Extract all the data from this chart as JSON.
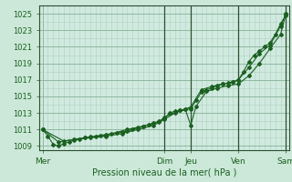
{
  "xlabel": "Pression niveau de la mer( hPa )",
  "bg_color": "#cce8d8",
  "plot_bg_color": "#d0eae0",
  "grid_major_color": "#90b8a0",
  "grid_minor_color": "#b0d0c0",
  "line_color": "#1a6020",
  "vline_color": "#2a5030",
  "ylim": [
    1008.5,
    1026.0
  ],
  "xlim": [
    -0.3,
    23.3
  ],
  "yticks": [
    1009,
    1011,
    1013,
    1015,
    1017,
    1019,
    1021,
    1023,
    1025
  ],
  "day_labels": [
    "Mer",
    "Dim",
    "Jeu",
    "Ven",
    "Sam"
  ],
  "day_positions": [
    0.0,
    11.5,
    14.0,
    18.5,
    23.0
  ],
  "vline_positions": [
    11.5,
    14.0,
    18.5,
    23.0
  ],
  "line1_x": [
    0.0,
    0.5,
    1.0,
    1.5,
    2.0,
    2.5,
    3.0,
    3.5,
    4.0,
    4.5,
    5.0,
    5.5,
    6.0,
    6.5,
    7.0,
    7.5,
    8.0,
    8.5,
    9.0,
    9.5,
    10.0,
    10.5,
    11.0,
    11.5,
    12.0,
    12.5,
    13.0,
    13.5,
    14.0,
    14.5,
    15.0,
    15.5,
    16.0,
    16.5,
    17.0,
    17.5,
    18.0,
    18.5,
    19.0,
    19.5,
    20.0,
    20.5,
    21.0,
    21.5,
    22.0,
    22.5,
    23.0
  ],
  "line1_y": [
    1011.0,
    1010.2,
    1009.2,
    1009.0,
    1009.3,
    1009.5,
    1009.7,
    1009.8,
    1010.0,
    1010.1,
    1010.2,
    1010.3,
    1010.4,
    1010.5,
    1010.6,
    1010.7,
    1010.8,
    1011.0,
    1011.2,
    1011.4,
    1011.6,
    1011.8,
    1012.0,
    1012.3,
    1013.0,
    1013.2,
    1013.3,
    1013.4,
    1013.5,
    1014.5,
    1015.5,
    1015.8,
    1016.0,
    1016.3,
    1016.5,
    1016.6,
    1016.8,
    1017.0,
    1018.0,
    1019.2,
    1020.0,
    1020.5,
    1021.0,
    1021.5,
    1022.5,
    1023.8,
    1024.8
  ],
  "line2_x": [
    0.0,
    1.5,
    3.0,
    4.5,
    6.0,
    7.5,
    9.0,
    10.5,
    11.5,
    12.5,
    13.5,
    14.0,
    14.5,
    15.5,
    16.5,
    17.5,
    18.5,
    19.5,
    20.5,
    21.5,
    22.5,
    23.0
  ],
  "line2_y": [
    1011.0,
    1009.5,
    1009.8,
    1010.0,
    1010.2,
    1010.5,
    1011.0,
    1011.5,
    1012.2,
    1013.0,
    1013.4,
    1011.5,
    1013.8,
    1015.6,
    1016.0,
    1016.3,
    1016.5,
    1017.5,
    1019.0,
    1020.8,
    1022.5,
    1025.0
  ],
  "line3_x": [
    0.0,
    2.0,
    4.0,
    6.0,
    8.0,
    9.5,
    11.0,
    11.5,
    13.0,
    14.0,
    15.0,
    16.0,
    17.0,
    18.0,
    18.5,
    19.5,
    20.5,
    21.5,
    22.5,
    23.0
  ],
  "line3_y": [
    1011.0,
    1009.6,
    1010.0,
    1010.3,
    1011.0,
    1011.4,
    1011.9,
    1012.5,
    1013.3,
    1013.7,
    1015.8,
    1016.2,
    1016.5,
    1016.7,
    1017.0,
    1018.5,
    1020.2,
    1021.2,
    1023.5,
    1025.0
  ]
}
